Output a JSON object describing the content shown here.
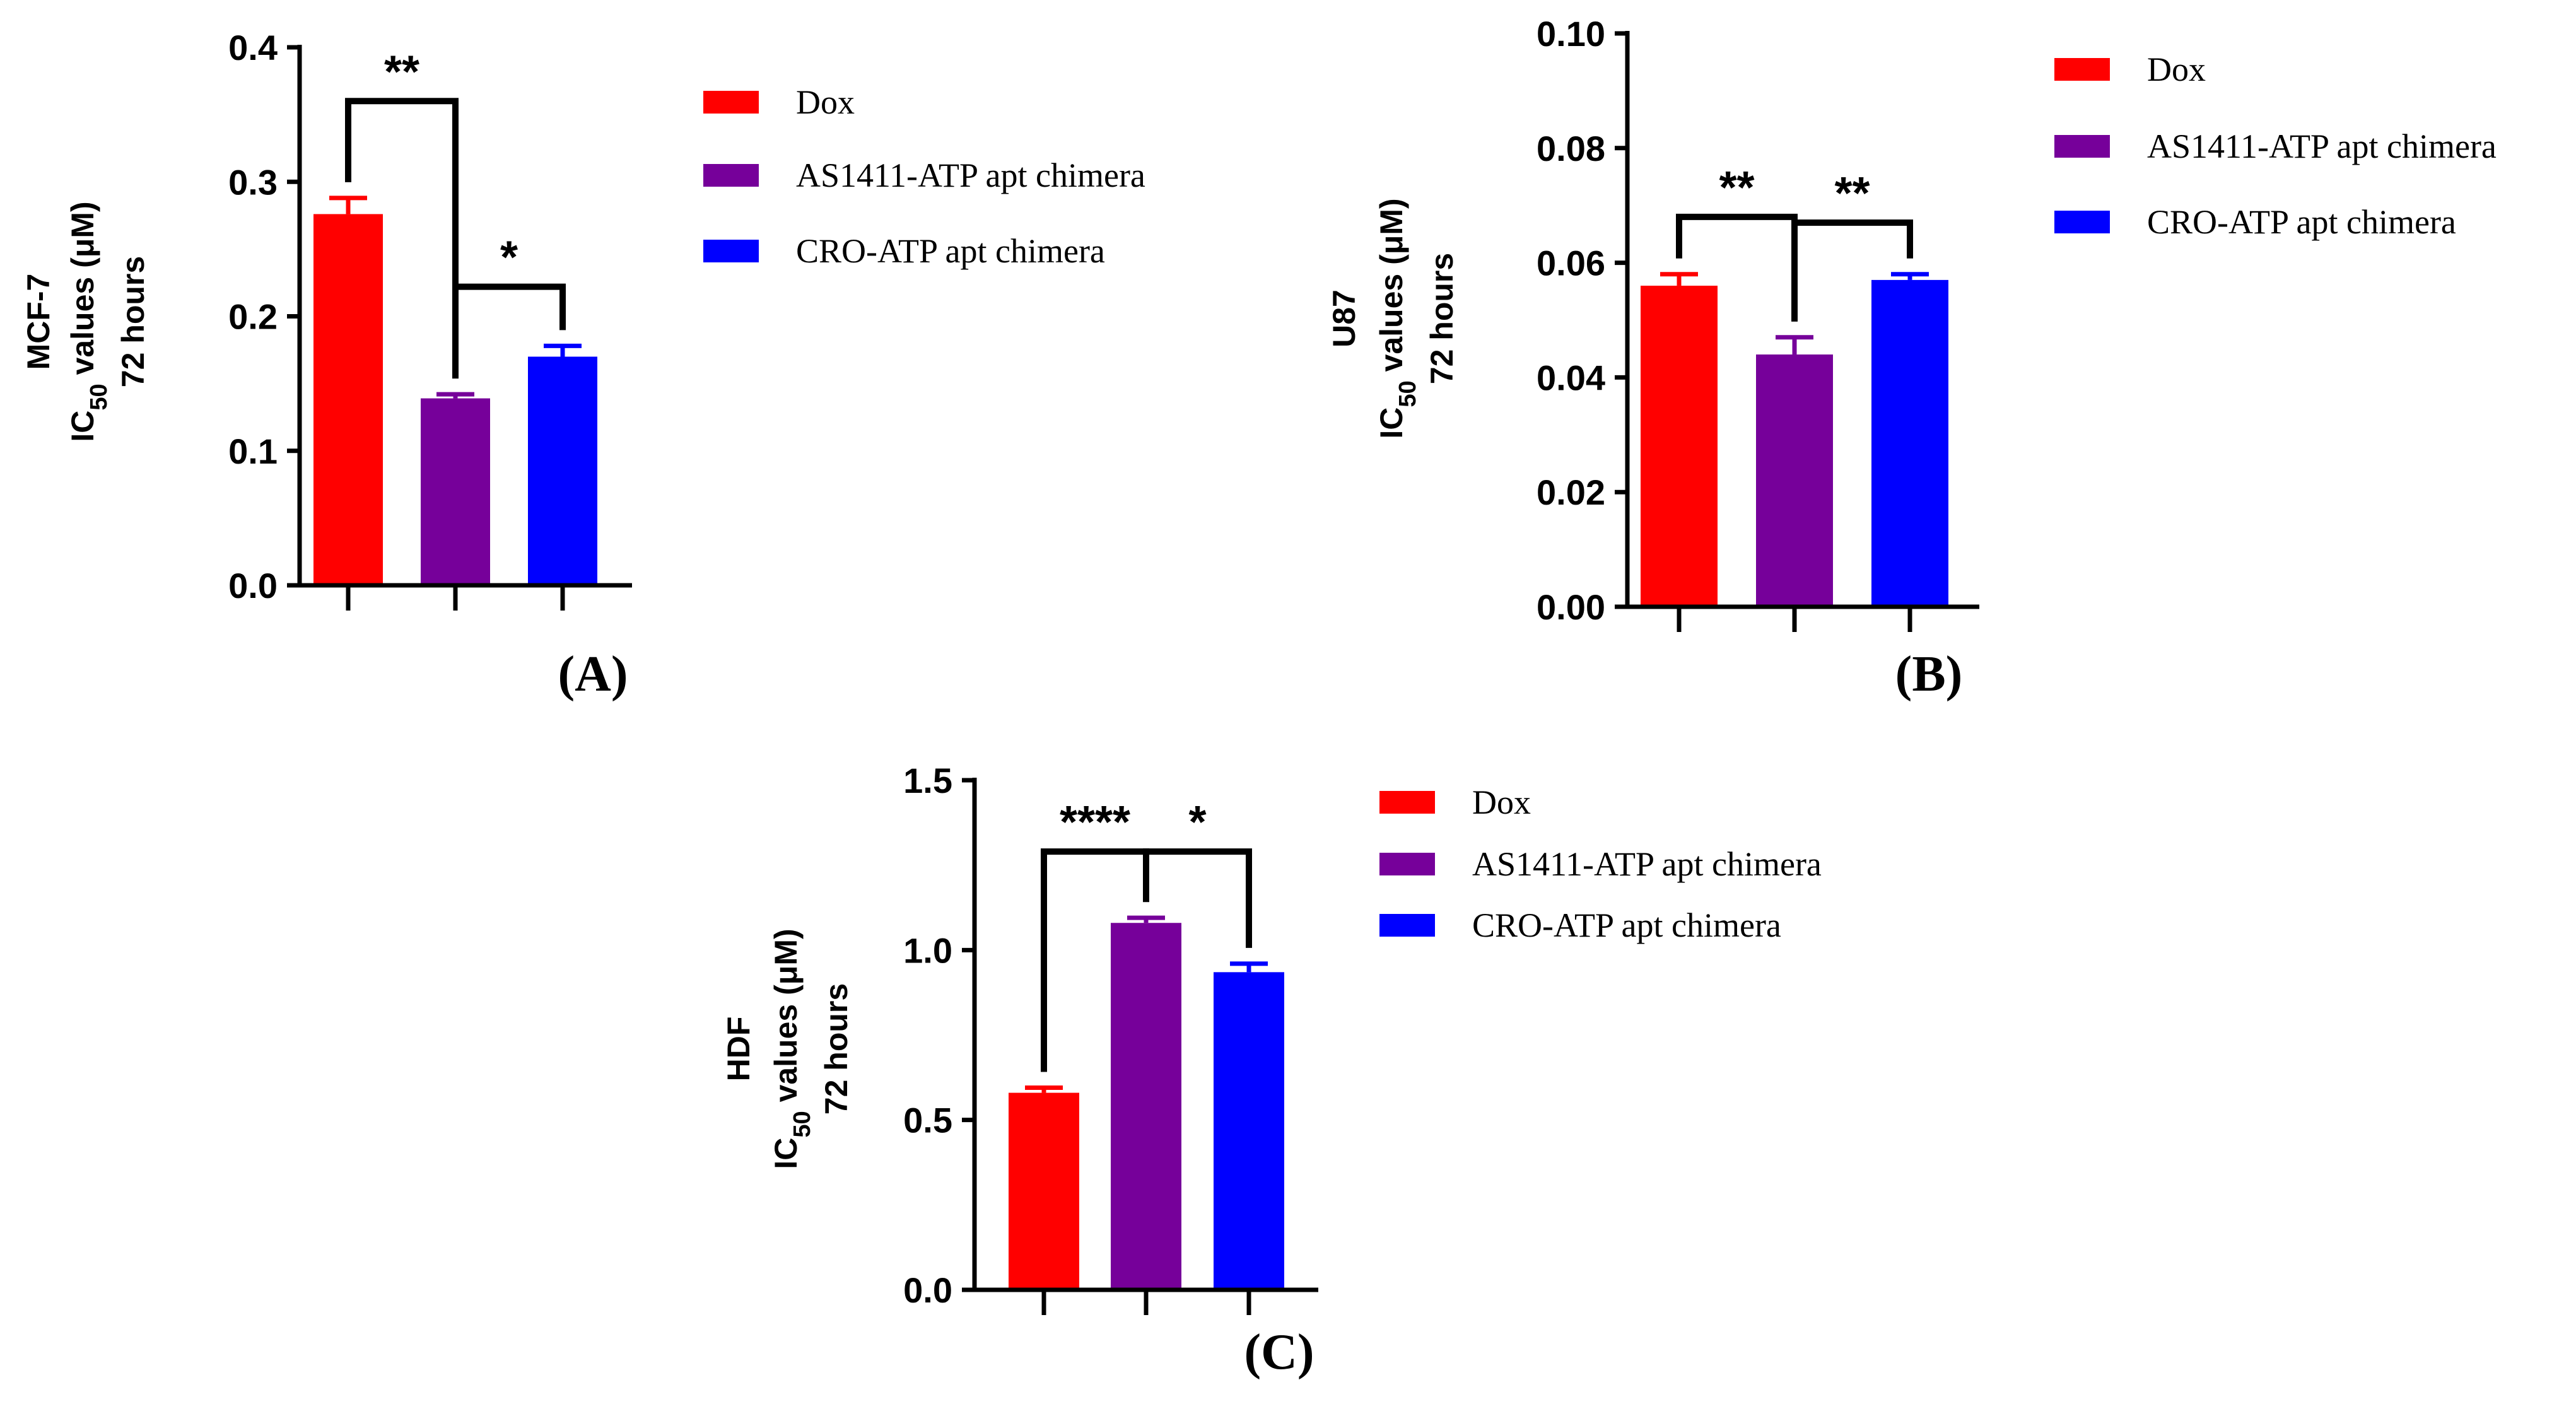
{
  "colors": {
    "dox": "#ff0000",
    "as1411": "#76009a",
    "cro": "#0000ff",
    "axis": "#000000"
  },
  "chart_data": [
    {
      "type": "bar",
      "panel": "(A)",
      "cell_line": "MCF-7",
      "ylabel_main": "IC",
      "ylabel_sub": "50",
      "ylabel_rest": " values (μM)",
      "ylabel_time": "72 hours",
      "categories": [
        "Dox",
        "AS1411-ATP apt chimera",
        "CRO-ATP apt chimera"
      ],
      "values": [
        0.276,
        0.139,
        0.17
      ],
      "errors": [
        0.012,
        0.003,
        0.008
      ],
      "ylim": [
        0,
        0.4
      ],
      "yticks": [
        0.0,
        0.1,
        0.2,
        0.3,
        0.4
      ],
      "ytick_labels": [
        "0.0",
        "0.1",
        "0.2",
        "0.3",
        "0.4"
      ],
      "legend": [
        "Dox",
        "AS1411-ATP apt chimera",
        "CRO-ATP apt chimera"
      ],
      "significance": [
        {
          "from": 0,
          "to": 1,
          "label": "**",
          "y": 0.36
        },
        {
          "from": 1,
          "to": 2,
          "label": "*",
          "y": 0.222
        }
      ]
    },
    {
      "type": "bar",
      "panel": "(B)",
      "cell_line": "U87",
      "ylabel_main": "IC",
      "ylabel_sub": "50",
      "ylabel_rest": " values (μM)",
      "ylabel_time": "72 hours",
      "categories": [
        "Dox",
        "AS1411-ATP apt chimera",
        "CRO-ATP apt chimera"
      ],
      "values": [
        0.056,
        0.044,
        0.057
      ],
      "errors": [
        0.002,
        0.003,
        0.001
      ],
      "ylim": [
        0,
        0.1
      ],
      "yticks": [
        0.0,
        0.02,
        0.04,
        0.06,
        0.08,
        0.1
      ],
      "ytick_labels": [
        "0.00",
        "0.02",
        "0.04",
        "0.06",
        "0.08",
        "0.10"
      ],
      "legend": [
        "Dox",
        "AS1411-ATP apt chimera",
        "CRO-ATP apt chimera"
      ],
      "significance": [
        {
          "from": 0,
          "to": 1,
          "label": "**",
          "y": 0.068
        },
        {
          "from": 1,
          "to": 2,
          "label": "**",
          "y": 0.067
        }
      ]
    },
    {
      "type": "bar",
      "panel": "(C)",
      "cell_line": "HDF",
      "ylabel_main": "IC",
      "ylabel_sub": "50",
      "ylabel_rest": " values (μM)",
      "ylabel_time": "72 hours",
      "categories": [
        "Dox",
        "AS1411-ATP apt chimera",
        "CRO-ATP apt chimera"
      ],
      "values": [
        0.58,
        1.08,
        0.935
      ],
      "errors": [
        0.015,
        0.015,
        0.025
      ],
      "ylim": [
        0,
        1.5
      ],
      "yticks": [
        0.0,
        0.5,
        1.0,
        1.5
      ],
      "ytick_labels": [
        "0.0",
        "0.5",
        "1.0",
        "1.5"
      ],
      "legend": [
        "Dox",
        "AS1411-ATP apt chimera",
        "CRO-ATP apt chimera"
      ],
      "significance": [
        {
          "from": 0,
          "to": 1,
          "label": "****",
          "y": 1.29
        },
        {
          "from": 1,
          "to": 2,
          "label": "*",
          "y": 1.29
        }
      ]
    }
  ]
}
